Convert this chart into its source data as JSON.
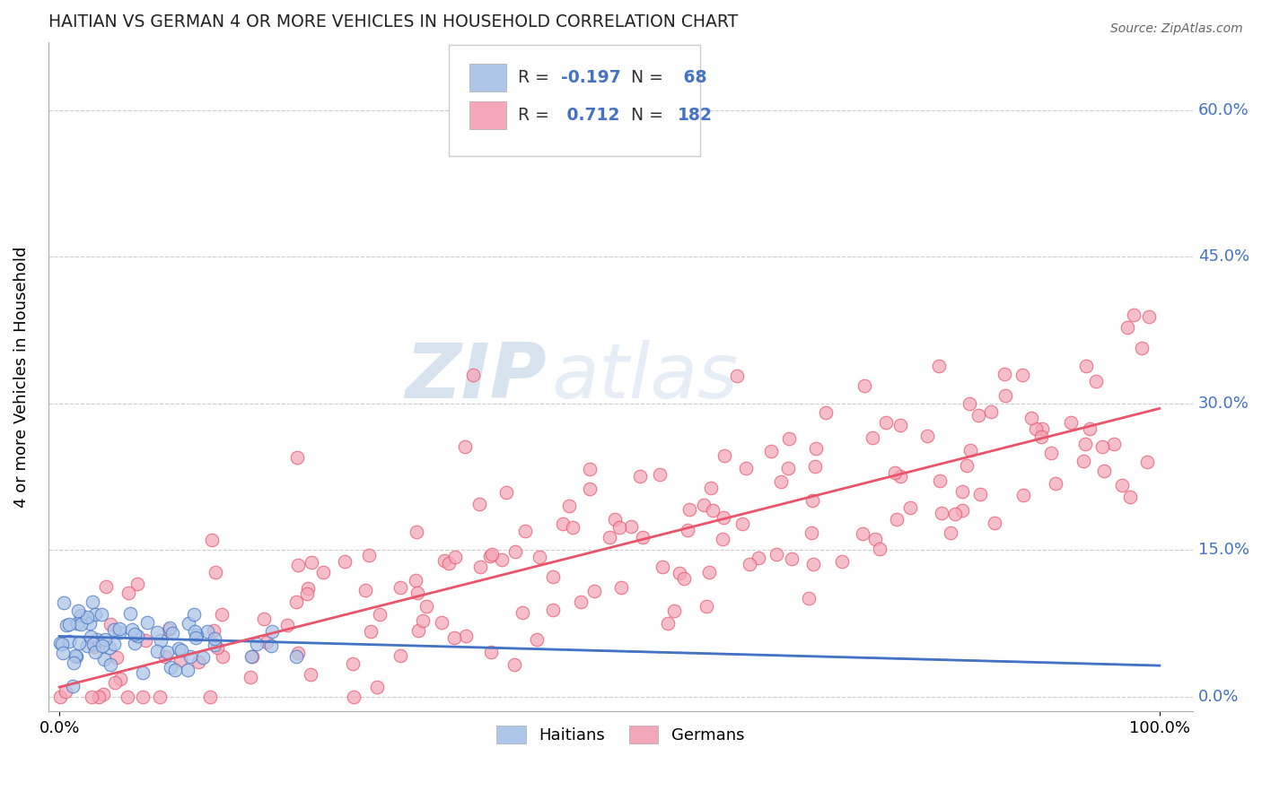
{
  "title": "HAITIAN VS GERMAN 4 OR MORE VEHICLES IN HOUSEHOLD CORRELATION CHART",
  "source": "Source: ZipAtlas.com",
  "ylabel_label": "4 or more Vehicles in Household",
  "legend_labels": [
    "Haitians",
    "Germans"
  ],
  "haitian_color": "#aec6e8",
  "german_color": "#f4a7b9",
  "haitian_line_color": "#4472c4",
  "german_line_color": "#e8546a",
  "haitian_R": -0.197,
  "haitian_N": 68,
  "german_R": 0.712,
  "german_N": 182,
  "watermark_zip": "ZIP",
  "watermark_atlas": "atlas",
  "background_color": "#ffffff",
  "grid_color": "#cccccc",
  "ytick_color": "#4472c4",
  "ytick_vals": [
    0.0,
    0.15,
    0.3,
    0.45,
    0.6
  ],
  "ytick_labels": [
    "0.0%",
    "15.0%",
    "30.0%",
    "45.0%",
    "60.0%"
  ],
  "xtick_vals": [
    0.0,
    1.0
  ],
  "xtick_labels": [
    "0.0%",
    "100.0%"
  ],
  "xlim": [
    -0.01,
    1.03
  ],
  "ylim": [
    -0.015,
    0.67
  ],
  "haitian_line_x": [
    0.0,
    1.0
  ],
  "haitian_line_y": [
    0.062,
    0.032
  ],
  "german_line_x": [
    0.0,
    1.0
  ],
  "german_line_y": [
    0.01,
    0.295
  ]
}
